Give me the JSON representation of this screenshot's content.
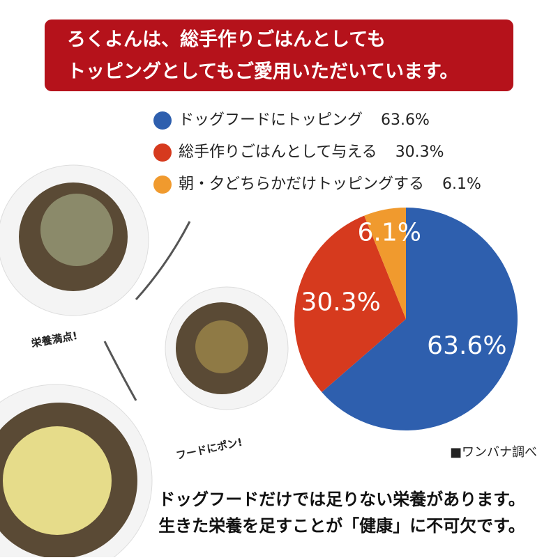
{
  "chart_data": {
    "type": "pie",
    "title": [
      "ろくよんは、総手作りごはんとしても",
      "トッピングとしてもご愛用いただいています。"
    ],
    "categories": [
      "ドッグフードにトッピング",
      "総手作りごはんとして与える",
      "朝・夕どちらかだけトッピングする"
    ],
    "values": [
      63.6,
      30.3,
      6.1
    ],
    "value_labels": [
      "63.6%",
      "30.3%",
      "6.1%"
    ],
    "colors": [
      "#2e5fae",
      "#d63a1e",
      "#f09a2e"
    ],
    "source": "■ワンバナ調べ",
    "annotations": [
      "栄養満点!",
      "フードにポン!"
    ],
    "footer": [
      "ドッグフードだけでは足りない栄養があります。",
      "生きた栄養を足すことが「健康」に不可欠です。"
    ]
  }
}
